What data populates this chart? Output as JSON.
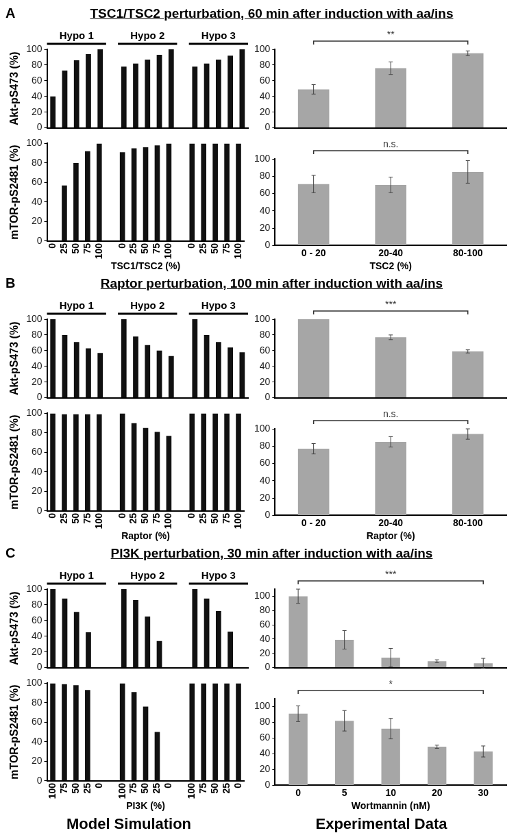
{
  "chart_data": [
    {
      "type": "bar",
      "title": "TSC1/TSC2 perturbation, 60 min after induction with aa/ins",
      "subtitle": "A",
      "ylabel": "Akt-pS473 (%)",
      "categories": [
        null,
        null,
        null,
        null,
        null,
        null,
        null,
        null,
        null,
        null,
        null,
        null,
        null,
        null,
        null,
        null,
        null
      ],
      "values": [
        40,
        73,
        86,
        94,
        100,
        null,
        78,
        82,
        87,
        93,
        100,
        null,
        78,
        82,
        87,
        92,
        100
      ],
      "color": "#111111",
      "ylim": [
        0,
        100
      ],
      "yticks": [
        0,
        20,
        40,
        60,
        80,
        100
      ],
      "tick_labels": "y",
      "annotations": [
        "Hypo 1",
        "Hypo 2",
        "Hypo 3"
      ]
    },
    {
      "type": "bar",
      "categories": [
        null,
        null,
        null
      ],
      "values": [
        49,
        76,
        95
      ],
      "errors": [
        6,
        8,
        3
      ],
      "color": "#a6a6a6",
      "ylim": [
        0,
        100
      ],
      "yticks": [
        0,
        20,
        40,
        60,
        80,
        100
      ],
      "tick_labels": "y",
      "annotations": [
        "**"
      ]
    },
    {
      "type": "bar",
      "ylabel": "mTOR-pS2481 (%)",
      "xlabel": "TSC1/TSC2 (%)",
      "categories": [
        "0",
        "25",
        "50",
        "75",
        "100",
        null,
        "0",
        "25",
        "50",
        "75",
        "100",
        null,
        "0",
        "25",
        "50",
        "75",
        "100"
      ],
      "values": [
        0,
        57,
        80,
        92,
        100,
        null,
        91,
        95,
        96,
        98,
        100,
        null,
        100,
        100,
        100,
        100,
        100
      ],
      "color": "#111111",
      "ylim": [
        0,
        100
      ],
      "yticks": [
        0,
        20,
        40,
        60,
        80,
        100
      ]
    },
    {
      "type": "bar",
      "xlabel": "TSC2 (%)",
      "categories": [
        "0 - 20",
        "20-40",
        "80-100"
      ],
      "values": [
        71,
        70,
        85
      ],
      "errors": [
        10,
        9,
        13
      ],
      "color": "#a6a6a6",
      "ylim": [
        0,
        100
      ],
      "yticks": [
        0,
        20,
        40,
        60,
        80,
        100
      ],
      "annotations": [
        "n.s."
      ]
    },
    {
      "type": "bar",
      "title": "Raptor perturbation, 100 min after induction with aa/ins",
      "subtitle": "B",
      "ylabel": "Akt-pS473 (%)",
      "categories": [
        null,
        null,
        null,
        null,
        null,
        null,
        null,
        null,
        null,
        null,
        null,
        null,
        null,
        null,
        null,
        null,
        null
      ],
      "values": [
        100,
        80,
        71,
        63,
        57,
        null,
        100,
        78,
        67,
        60,
        53,
        null,
        100,
        80,
        71,
        64,
        58
      ],
      "color": "#111111",
      "ylim": [
        0,
        100
      ],
      "yticks": [
        0,
        20,
        40,
        60,
        80,
        100
      ],
      "tick_labels": "y",
      "annotations": [
        "Hypo 1",
        "Hypo 2",
        "Hypo 3"
      ]
    },
    {
      "type": "bar",
      "categories": [
        null,
        null,
        null
      ],
      "values": [
        100,
        77,
        59
      ],
      "errors": [
        null,
        3,
        2
      ],
      "color": "#a6a6a6",
      "ylim": [
        0,
        100
      ],
      "yticks": [
        0,
        20,
        40,
        60,
        80,
        100
      ],
      "tick_labels": "y",
      "annotations": [
        "***"
      ]
    },
    {
      "type": "bar",
      "ylabel": "mTOR-pS2481 (%)",
      "xlabel": "Raptor (%)",
      "categories": [
        "0",
        "25",
        "50",
        "75",
        "100",
        null,
        "0",
        "25",
        "50",
        "75",
        "100",
        null,
        "0",
        "25",
        "50",
        "75",
        "100"
      ],
      "values": [
        100,
        99,
        99,
        99,
        99,
        null,
        100,
        90,
        85,
        81,
        77,
        null,
        100,
        100,
        100,
        100,
        100
      ],
      "color": "#111111",
      "ylim": [
        0,
        100
      ],
      "yticks": [
        0,
        20,
        40,
        60,
        80,
        100
      ]
    },
    {
      "type": "bar",
      "xlabel": "Raptor (%)",
      "categories": [
        "0 - 20",
        "20-40",
        "80-100"
      ],
      "values": [
        77,
        85,
        94
      ],
      "errors": [
        6,
        6,
        6
      ],
      "color": "#a6a6a6",
      "ylim": [
        0,
        100
      ],
      "yticks": [
        0,
        20,
        40,
        60,
        80,
        100
      ],
      "annotations": [
        "n.s."
      ]
    },
    {
      "type": "bar",
      "title": "PI3K perturbation, 30 min after induction with aa/ins",
      "subtitle": "C",
      "ylabel": "Akt-pS473 (%)",
      "categories": [
        null,
        null,
        null,
        null,
        null,
        null,
        null,
        null,
        null,
        null,
        null,
        null,
        null,
        null,
        null,
        null,
        null
      ],
      "values": [
        100,
        88,
        71,
        45,
        0,
        null,
        100,
        86,
        65,
        34,
        0,
        null,
        100,
        88,
        72,
        46,
        0
      ],
      "color": "#111111",
      "ylim": [
        0,
        100
      ],
      "yticks": [
        0,
        20,
        40,
        60,
        80,
        100
      ],
      "tick_labels": "y",
      "annotations": [
        "Hypo 1",
        "Hypo 2",
        "Hypo 3"
      ]
    },
    {
      "type": "bar",
      "categories": [
        null,
        null,
        null,
        null,
        null
      ],
      "values": [
        100,
        39,
        14,
        9,
        6
      ],
      "errors": [
        10,
        13,
        13,
        2,
        7
      ],
      "color": "#a6a6a6",
      "ylim": [
        0,
        110
      ],
      "yticks": [
        0,
        20,
        40,
        60,
        80,
        100
      ],
      "tick_labels": "y",
      "annotations": [
        "***"
      ]
    },
    {
      "type": "bar",
      "ylabel": "mTOR-pS2481 (%)",
      "xlabel": "PI3K (%)",
      "categories": [
        "100",
        "75",
        "50",
        "25",
        "0",
        null,
        "100",
        "75",
        "50",
        "25",
        "0",
        null,
        "100",
        "75",
        "50",
        "25",
        "0"
      ],
      "values": [
        100,
        99,
        98,
        93,
        0,
        null,
        100,
        91,
        76,
        50,
        0,
        null,
        100,
        100,
        100,
        100,
        100
      ],
      "color": "#111111",
      "ylim": [
        0,
        100
      ],
      "yticks": [
        0,
        20,
        40,
        60,
        80,
        100
      ],
      "annotations": [
        "Model Simulation"
      ]
    },
    {
      "type": "bar",
      "xlabel": "Wortmannin (nM)",
      "categories": [
        "0",
        "5",
        "10",
        "20",
        "30"
      ],
      "values": [
        91,
        82,
        72,
        49,
        43
      ],
      "errors": [
        10,
        13,
        13,
        2,
        7
      ],
      "color": "#a6a6a6",
      "ylim": [
        0,
        110
      ],
      "yticks": [
        0,
        20,
        40,
        60,
        80,
        100
      ],
      "annotations": [
        "*",
        "Experimental Data"
      ]
    }
  ]
}
